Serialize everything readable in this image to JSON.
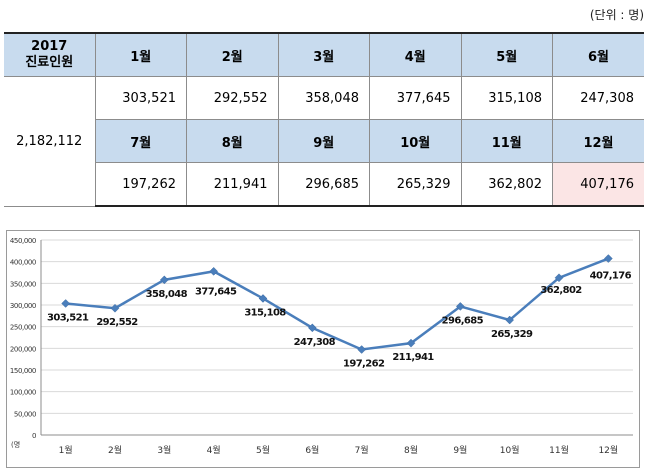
{
  "unit_label": "(단위 : 명)",
  "table": {
    "header_year": "2017",
    "header_label": "진료인원",
    "total": "2,182,112",
    "row1_months": [
      "1월",
      "2월",
      "3월",
      "4월",
      "5월",
      "6월"
    ],
    "row1_values": [
      "303,521",
      "292,552",
      "358,048",
      "377,645",
      "315,108",
      "247,308"
    ],
    "row2_months": [
      "7월",
      "8월",
      "9월",
      "10월",
      "11월",
      "12월"
    ],
    "row2_values": [
      "197,262",
      "211,941",
      "296,685",
      "265,329",
      "362,802",
      "407,176"
    ]
  },
  "chart_data": {
    "type": "line",
    "ylabel": "(명",
    "ylim": [
      0,
      450000
    ],
    "ytick_step": 50000,
    "ytick_labels": [
      "0",
      "50,000",
      "100,000",
      "150,000",
      "200,000",
      "250,000",
      "300,000",
      "350,000",
      "400,000",
      "450,000"
    ],
    "categories": [
      "1월",
      "2월",
      "3월",
      "4월",
      "5월",
      "6월",
      "7월",
      "8월",
      "9월",
      "10월",
      "11월",
      "12월"
    ],
    "values": [
      303521,
      292552,
      358048,
      377645,
      315108,
      247308,
      197262,
      211941,
      296685,
      265329,
      362802,
      407176
    ],
    "data_labels": [
      "303,521",
      "292,552",
      "358,048",
      "377,645",
      "315,108",
      "247,308",
      "197,262",
      "211,941",
      "296,685",
      "265,329",
      "362,802",
      "407,176"
    ],
    "grid": true,
    "line_color": "#4a7ebb"
  }
}
